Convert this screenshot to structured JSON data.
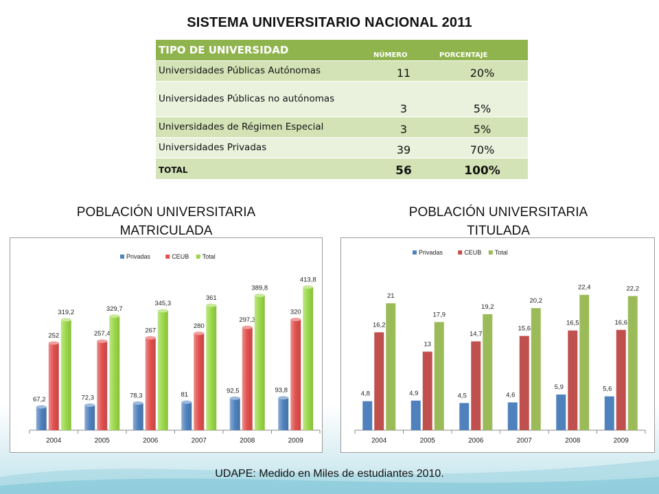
{
  "title": "SISTEMA UNIVERSITARIO NACIONAL 2011",
  "table": {
    "headers": [
      "TIPO DE UNIVERSIDAD",
      "NÚMERO",
      "PORCENTAJE"
    ],
    "rows": [
      {
        "tipo": "Universidades Públicas Autónomas",
        "numero": "11",
        "porcentaje": "20%"
      },
      {
        "tipo": "Universidades Públicas no autónomas",
        "numero": "3",
        "porcentaje": "5%"
      },
      {
        "tipo": "Universidades de Régimen Especial",
        "numero": "3",
        "porcentaje": "5%"
      },
      {
        "tipo": "Universidades Privadas",
        "numero": "39",
        "porcentaje": "70%"
      }
    ],
    "total": {
      "tipo": "TOTAL",
      "numero": "56",
      "porcentaje": "100%"
    }
  },
  "subtitles": {
    "left_line1": "POBLACIÓN UNIVERSITARIA",
    "left_line2": "MATRICULADA",
    "right_line1": "POBLACIÓN UNIVERSITARIA",
    "right_line2": "TITULADA"
  },
  "footer": "UDAPE: Medido en Miles de estudiantes 2010.",
  "chart_data": [
    {
      "type": "bar",
      "title": "",
      "categories": [
        "2004",
        "2005",
        "2006",
        "2007",
        "2008",
        "2009"
      ],
      "series": [
        {
          "name": "Privadas",
          "values": [
            67.2,
            72.3,
            78.3,
            81,
            92.5,
            93.8
          ],
          "labels": [
            "67,2",
            "72,3",
            "78,3",
            "81",
            "92,5",
            "93,8"
          ],
          "color": "#4f81bd"
        },
        {
          "name": "CEUB",
          "values": [
            252,
            257.4,
            267,
            280,
            297.3,
            320
          ],
          "labels": [
            "252",
            "257,4",
            "267",
            "280",
            "297,3",
            "320"
          ],
          "color": "#e0504d"
        },
        {
          "name": "Total",
          "values": [
            319.2,
            329.7,
            345.3,
            361,
            389.8,
            413.8
          ],
          "labels": [
            "319,2",
            "329,7",
            "345,3",
            "361",
            "389,8",
            "413,8"
          ],
          "color": "#9bd848"
        }
      ],
      "ylim": [
        0,
        480
      ],
      "legend": "top-right",
      "grid": false,
      "style": "gradient"
    },
    {
      "type": "bar",
      "title": "",
      "categories": [
        "2004",
        "2005",
        "2006",
        "2007",
        "2008",
        "2009"
      ],
      "series": [
        {
          "name": "Privadas",
          "values": [
            4.8,
            4.9,
            4.5,
            4.6,
            5.9,
            5.6
          ],
          "labels": [
            "4,8",
            "4,9",
            "4,5",
            "4,6",
            "5,9",
            "5,6"
          ],
          "color": "#4f81bd"
        },
        {
          "name": "CEUB",
          "values": [
            16.2,
            13,
            14.7,
            15.6,
            16.5,
            16.6
          ],
          "labels": [
            "16,2",
            "13",
            "14,7",
            "15,6",
            "16,5",
            "16,6"
          ],
          "color": "#c0504d"
        },
        {
          "name": "Total",
          "values": [
            21,
            17.9,
            19.2,
            20.2,
            22.4,
            22.2
          ],
          "labels": [
            "21",
            "17,9",
            "19,2",
            "20,2",
            "22,4",
            "22,2"
          ],
          "color": "#9bbb59"
        }
      ],
      "ylim": [
        0,
        26
      ],
      "legend": "top-right",
      "grid": false,
      "style": "flat"
    }
  ]
}
